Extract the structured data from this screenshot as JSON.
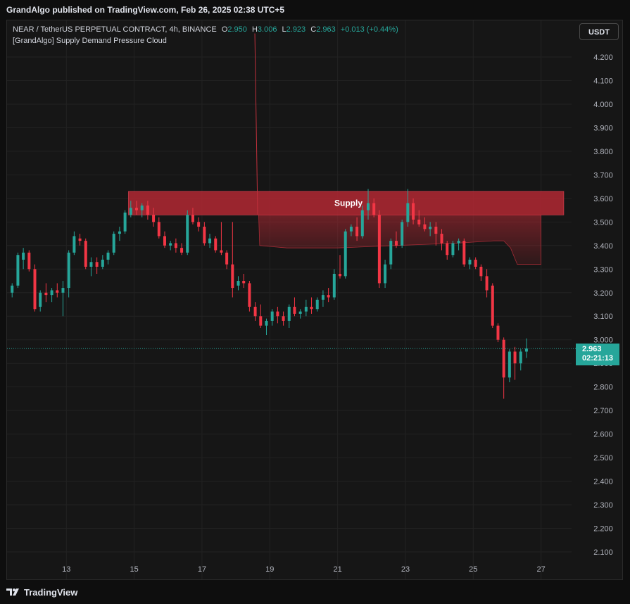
{
  "header": {
    "published": "GrandAlgo published on TradingView.com, Feb 26, 2025 02:38 UTC+5"
  },
  "legend": {
    "symbol": "NEAR / TetherUS PERPETUAL CONTRACT, 4h, BINANCE",
    "o_label": "O",
    "o_value": "2.950",
    "h_label": "H",
    "h_value": "3.006",
    "l_label": "L",
    "l_value": "2.923",
    "c_label": "C",
    "c_value": "2.963",
    "change": "+0.013 (+0.44%)",
    "indicator": "[GrandAlgo] Supply Demand Pressure Cloud"
  },
  "currency_button": "USDT",
  "last_price": {
    "price": "2.963",
    "countdown": "02:21:13"
  },
  "footer": {
    "brand": "TradingView"
  },
  "colors": {
    "up": "#26a69a",
    "down": "#f23645",
    "supply": "#b22833",
    "background": "#161616"
  },
  "chart_data": {
    "type": "candlestick",
    "ylim": [
      2.05,
      4.3
    ],
    "yticks": [
      "4.200",
      "4.100",
      "4.000",
      "3.900",
      "3.800",
      "3.700",
      "3.600",
      "3.500",
      "3.400",
      "3.300",
      "3.200",
      "3.100",
      "3.000",
      "2.900",
      "2.800",
      "2.700",
      "2.600",
      "2.500",
      "2.400",
      "2.300",
      "2.200",
      "2.100"
    ],
    "xticks": [
      {
        "label": "13",
        "t": 13
      },
      {
        "label": "15",
        "t": 15
      },
      {
        "label": "17",
        "t": 17
      },
      {
        "label": "19",
        "t": 19
      },
      {
        "label": "21",
        "t": 21
      },
      {
        "label": "23",
        "t": 23
      },
      {
        "label": "25",
        "t": 25
      },
      {
        "label": "27",
        "t": 27
      }
    ],
    "supply_zone": {
      "label": "Supply",
      "top": 3.63,
      "bottom": 3.53,
      "t_start": 14.83,
      "t_end": 27.67
    },
    "pressure_cloud": [
      [
        18.67,
        3.53
      ],
      [
        21.6,
        3.53
      ],
      [
        22.4,
        3.53
      ],
      [
        27.0,
        3.53
      ],
      [
        27.0,
        3.32
      ],
      [
        26.3,
        3.32
      ],
      [
        26.1,
        3.39
      ],
      [
        25.9,
        3.42
      ],
      [
        25.6,
        3.42
      ],
      [
        24.5,
        3.41
      ],
      [
        22.7,
        3.4
      ],
      [
        21.0,
        3.39
      ],
      [
        20.2,
        3.39
      ],
      [
        19.5,
        3.39
      ],
      [
        18.7,
        3.4
      ]
    ],
    "spike_line": {
      "t": 18.6,
      "from": 4.3,
      "to": 3.53
    },
    "candles": [
      {
        "t": 11.4,
        "o": 3.2,
        "h": 3.24,
        "l": 3.18,
        "c": 3.23
      },
      {
        "t": 11.57,
        "o": 3.23,
        "h": 3.37,
        "l": 3.22,
        "c": 3.36
      },
      {
        "t": 11.73,
        "o": 3.34,
        "h": 3.39,
        "l": 3.3,
        "c": 3.37
      },
      {
        "t": 11.9,
        "o": 3.37,
        "h": 3.38,
        "l": 3.29,
        "c": 3.3
      },
      {
        "t": 12.07,
        "o": 3.3,
        "h": 3.32,
        "l": 3.12,
        "c": 3.13
      },
      {
        "t": 12.23,
        "o": 3.14,
        "h": 3.21,
        "l": 3.12,
        "c": 3.2
      },
      {
        "t": 12.4,
        "o": 3.2,
        "h": 3.24,
        "l": 3.16,
        "c": 3.19
      },
      {
        "t": 12.57,
        "o": 3.19,
        "h": 3.22,
        "l": 3.16,
        "c": 3.21
      },
      {
        "t": 12.73,
        "o": 3.21,
        "h": 3.24,
        "l": 3.18,
        "c": 3.2
      },
      {
        "t": 12.9,
        "o": 3.2,
        "h": 3.25,
        "l": 3.1,
        "c": 3.22
      },
      {
        "t": 13.07,
        "o": 3.22,
        "h": 3.38,
        "l": 3.18,
        "c": 3.37
      },
      {
        "t": 13.23,
        "o": 3.37,
        "h": 3.46,
        "l": 3.36,
        "c": 3.44
      },
      {
        "t": 13.4,
        "o": 3.43,
        "h": 3.45,
        "l": 3.4,
        "c": 3.42
      },
      {
        "t": 13.57,
        "o": 3.42,
        "h": 3.43,
        "l": 3.3,
        "c": 3.31
      },
      {
        "t": 13.73,
        "o": 3.31,
        "h": 3.35,
        "l": 3.27,
        "c": 3.33
      },
      {
        "t": 13.9,
        "o": 3.33,
        "h": 3.35,
        "l": 3.28,
        "c": 3.31
      },
      {
        "t": 14.07,
        "o": 3.31,
        "h": 3.36,
        "l": 3.3,
        "c": 3.34
      },
      {
        "t": 14.23,
        "o": 3.34,
        "h": 3.38,
        "l": 3.32,
        "c": 3.37
      },
      {
        "t": 14.4,
        "o": 3.37,
        "h": 3.46,
        "l": 3.36,
        "c": 3.45
      },
      {
        "t": 14.57,
        "o": 3.45,
        "h": 3.48,
        "l": 3.42,
        "c": 3.46
      },
      {
        "t": 14.73,
        "o": 3.46,
        "h": 3.55,
        "l": 3.45,
        "c": 3.54
      },
      {
        "t": 14.9,
        "o": 3.53,
        "h": 3.59,
        "l": 3.52,
        "c": 3.56
      },
      {
        "t": 15.07,
        "o": 3.56,
        "h": 3.59,
        "l": 3.53,
        "c": 3.55
      },
      {
        "t": 15.23,
        "o": 3.55,
        "h": 3.58,
        "l": 3.52,
        "c": 3.57
      },
      {
        "t": 15.4,
        "o": 3.57,
        "h": 3.59,
        "l": 3.51,
        "c": 3.53
      },
      {
        "t": 15.57,
        "o": 3.53,
        "h": 3.56,
        "l": 3.48,
        "c": 3.5
      },
      {
        "t": 15.73,
        "o": 3.5,
        "h": 3.52,
        "l": 3.43,
        "c": 3.44
      },
      {
        "t": 15.9,
        "o": 3.44,
        "h": 3.46,
        "l": 3.39,
        "c": 3.4
      },
      {
        "t": 16.07,
        "o": 3.4,
        "h": 3.42,
        "l": 3.38,
        "c": 3.41
      },
      {
        "t": 16.23,
        "o": 3.41,
        "h": 3.43,
        "l": 3.37,
        "c": 3.39
      },
      {
        "t": 16.4,
        "o": 3.39,
        "h": 3.41,
        "l": 3.36,
        "c": 3.37
      },
      {
        "t": 16.57,
        "o": 3.37,
        "h": 3.55,
        "l": 3.36,
        "c": 3.53
      },
      {
        "t": 16.73,
        "o": 3.53,
        "h": 3.56,
        "l": 3.49,
        "c": 3.5
      },
      {
        "t": 16.9,
        "o": 3.5,
        "h": 3.52,
        "l": 3.46,
        "c": 3.48
      },
      {
        "t": 17.07,
        "o": 3.48,
        "h": 3.5,
        "l": 3.4,
        "c": 3.41
      },
      {
        "t": 17.23,
        "o": 3.41,
        "h": 3.45,
        "l": 3.39,
        "c": 3.43
      },
      {
        "t": 17.4,
        "o": 3.43,
        "h": 3.44,
        "l": 3.37,
        "c": 3.38
      },
      {
        "t": 17.57,
        "o": 3.38,
        "h": 3.5,
        "l": 3.36,
        "c": 3.37
      },
      {
        "t": 17.73,
        "o": 3.37,
        "h": 3.38,
        "l": 3.3,
        "c": 3.32
      },
      {
        "t": 17.9,
        "o": 3.32,
        "h": 3.5,
        "l": 3.18,
        "c": 3.22
      },
      {
        "t": 18.07,
        "o": 3.23,
        "h": 3.27,
        "l": 3.21,
        "c": 3.25
      },
      {
        "t": 18.23,
        "o": 3.25,
        "h": 3.28,
        "l": 3.22,
        "c": 3.24
      },
      {
        "t": 18.4,
        "o": 3.24,
        "h": 3.25,
        "l": 3.12,
        "c": 3.14
      },
      {
        "t": 18.57,
        "o": 3.14,
        "h": 3.16,
        "l": 3.08,
        "c": 3.1
      },
      {
        "t": 18.73,
        "o": 3.1,
        "h": 3.15,
        "l": 3.05,
        "c": 3.06
      },
      {
        "t": 18.9,
        "o": 3.06,
        "h": 3.09,
        "l": 3.02,
        "c": 3.08
      },
      {
        "t": 19.07,
        "o": 3.08,
        "h": 3.13,
        "l": 3.06,
        "c": 3.12
      },
      {
        "t": 19.23,
        "o": 3.12,
        "h": 3.14,
        "l": 3.07,
        "c": 3.1
      },
      {
        "t": 19.4,
        "o": 3.1,
        "h": 3.12,
        "l": 3.06,
        "c": 3.08
      },
      {
        "t": 19.57,
        "o": 3.08,
        "h": 3.15,
        "l": 3.05,
        "c": 3.14
      },
      {
        "t": 19.73,
        "o": 3.14,
        "h": 3.18,
        "l": 3.1,
        "c": 3.11
      },
      {
        "t": 19.9,
        "o": 3.11,
        "h": 3.13,
        "l": 3.09,
        "c": 3.12
      },
      {
        "t": 20.07,
        "o": 3.12,
        "h": 3.17,
        "l": 3.1,
        "c": 3.14
      },
      {
        "t": 20.23,
        "o": 3.14,
        "h": 3.18,
        "l": 3.11,
        "c": 3.13
      },
      {
        "t": 20.4,
        "o": 3.13,
        "h": 3.18,
        "l": 3.12,
        "c": 3.17
      },
      {
        "t": 20.57,
        "o": 3.17,
        "h": 3.21,
        "l": 3.14,
        "c": 3.19
      },
      {
        "t": 20.73,
        "o": 3.19,
        "h": 3.22,
        "l": 3.16,
        "c": 3.18
      },
      {
        "t": 20.9,
        "o": 3.18,
        "h": 3.3,
        "l": 3.17,
        "c": 3.28
      },
      {
        "t": 21.07,
        "o": 3.28,
        "h": 3.36,
        "l": 3.26,
        "c": 3.27
      },
      {
        "t": 21.23,
        "o": 3.27,
        "h": 3.47,
        "l": 3.26,
        "c": 3.46
      },
      {
        "t": 21.4,
        "o": 3.46,
        "h": 3.49,
        "l": 3.44,
        "c": 3.48
      },
      {
        "t": 21.57,
        "o": 3.48,
        "h": 3.52,
        "l": 3.42,
        "c": 3.44
      },
      {
        "t": 21.73,
        "o": 3.44,
        "h": 3.57,
        "l": 3.43,
        "c": 3.55
      },
      {
        "t": 21.9,
        "o": 3.55,
        "h": 3.64,
        "l": 3.51,
        "c": 3.58
      },
      {
        "t": 22.07,
        "o": 3.58,
        "h": 3.6,
        "l": 3.52,
        "c": 3.53
      },
      {
        "t": 22.23,
        "o": 3.53,
        "h": 3.55,
        "l": 3.22,
        "c": 3.24
      },
      {
        "t": 22.4,
        "o": 3.24,
        "h": 3.34,
        "l": 3.22,
        "c": 3.32
      },
      {
        "t": 22.57,
        "o": 3.32,
        "h": 3.43,
        "l": 3.3,
        "c": 3.42
      },
      {
        "t": 22.73,
        "o": 3.42,
        "h": 3.46,
        "l": 3.39,
        "c": 3.4
      },
      {
        "t": 22.9,
        "o": 3.4,
        "h": 3.51,
        "l": 3.39,
        "c": 3.5
      },
      {
        "t": 23.07,
        "o": 3.5,
        "h": 3.64,
        "l": 3.48,
        "c": 3.58
      },
      {
        "t": 23.23,
        "o": 3.58,
        "h": 3.6,
        "l": 3.49,
        "c": 3.51
      },
      {
        "t": 23.4,
        "o": 3.51,
        "h": 3.55,
        "l": 3.48,
        "c": 3.49
      },
      {
        "t": 23.57,
        "o": 3.49,
        "h": 3.52,
        "l": 3.46,
        "c": 3.47
      },
      {
        "t": 23.73,
        "o": 3.47,
        "h": 3.5,
        "l": 3.44,
        "c": 3.48
      },
      {
        "t": 23.9,
        "o": 3.48,
        "h": 3.5,
        "l": 3.4,
        "c": 3.45
      },
      {
        "t": 24.07,
        "o": 3.45,
        "h": 3.47,
        "l": 3.38,
        "c": 3.41
      },
      {
        "t": 24.23,
        "o": 3.41,
        "h": 3.42,
        "l": 3.34,
        "c": 3.36
      },
      {
        "t": 24.4,
        "o": 3.36,
        "h": 3.42,
        "l": 3.35,
        "c": 3.41
      },
      {
        "t": 24.57,
        "o": 3.41,
        "h": 3.43,
        "l": 3.38,
        "c": 3.42
      },
      {
        "t": 24.73,
        "o": 3.42,
        "h": 3.43,
        "l": 3.31,
        "c": 3.32
      },
      {
        "t": 24.9,
        "o": 3.32,
        "h": 3.35,
        "l": 3.3,
        "c": 3.34
      },
      {
        "t": 25.07,
        "o": 3.34,
        "h": 3.35,
        "l": 3.3,
        "c": 3.31
      },
      {
        "t": 25.23,
        "o": 3.31,
        "h": 3.32,
        "l": 3.25,
        "c": 3.27
      },
      {
        "t": 25.4,
        "o": 3.27,
        "h": 3.3,
        "l": 3.18,
        "c": 3.21
      },
      {
        "t": 25.57,
        "o": 3.23,
        "h": 3.24,
        "l": 3.05,
        "c": 3.06
      },
      {
        "t": 25.73,
        "o": 3.06,
        "h": 3.07,
        "l": 2.99,
        "c": 3.0
      },
      {
        "t": 25.9,
        "o": 3.0,
        "h": 3.01,
        "l": 2.75,
        "c": 2.84
      },
      {
        "t": 26.07,
        "o": 2.84,
        "h": 2.96,
        "l": 2.82,
        "c": 2.95
      },
      {
        "t": 26.23,
        "o": 2.95,
        "h": 2.97,
        "l": 2.83,
        "c": 2.9
      },
      {
        "t": 26.4,
        "o": 2.9,
        "h": 2.96,
        "l": 2.87,
        "c": 2.95
      },
      {
        "t": 26.57,
        "o": 2.95,
        "h": 3.006,
        "l": 2.923,
        "c": 2.963
      }
    ]
  }
}
